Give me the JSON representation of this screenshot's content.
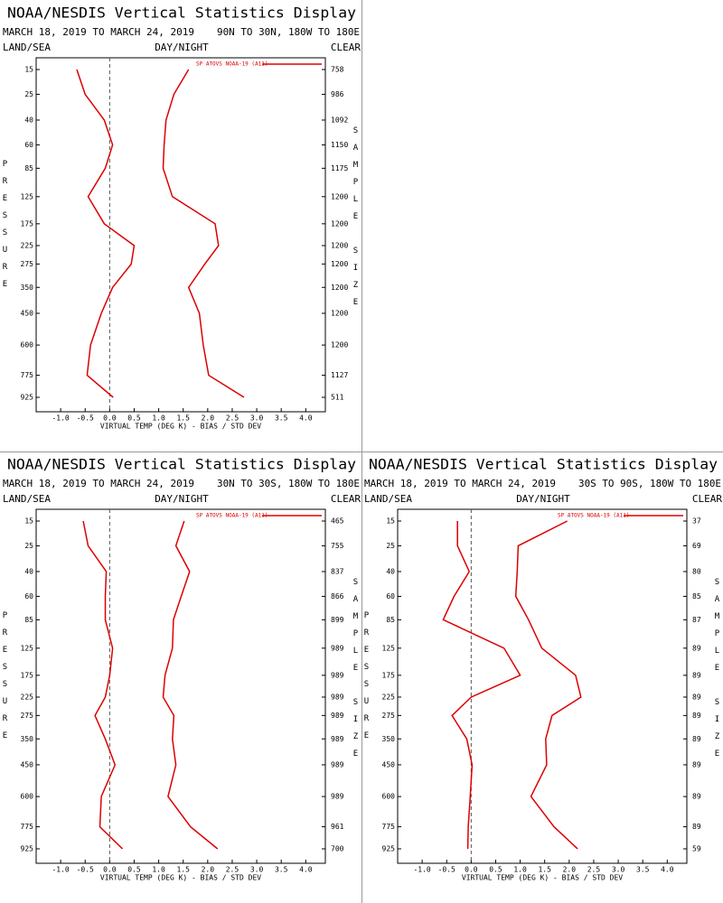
{
  "chart_data": [
    {
      "type": "line",
      "title": "NOAA/NESDIS Vertical Statistics Display",
      "date_range": "MARCH 18, 2019 TO MARCH 24, 2019",
      "region": "90N TO 30N, 180W TO 180E",
      "land_sea": "LAND/SEA",
      "day_night": "DAY/NIGHT",
      "clear": "CLEAR",
      "legend": "SP ATOVS NOAA-19 (A11)",
      "color": "#dd0000",
      "ylabel": "PRESSURE",
      "y2label": "SAMPLE SIZE",
      "xlabel": "VIRTUAL TEMP (DEG K) - BIAS / STD DEV",
      "xlim": [
        -1.5,
        4.4
      ],
      "xticks": [
        {
          "value": -1,
          "label": "-1.0"
        },
        -0.5,
        {
          "value": 0,
          "label": "0.0"
        },
        0.5,
        {
          "value": 1,
          "label": "1.0"
        },
        1.5,
        {
          "value": 2,
          "label": "2.0"
        },
        2.5,
        {
          "value": 3,
          "label": "3.0"
        },
        3.5,
        {
          "value": 4,
          "label": "4.0"
        }
      ],
      "levels": [
        15,
        25,
        40,
        60,
        85,
        125,
        175,
        225,
        275,
        350,
        450,
        600,
        775,
        925
      ],
      "bias": [
        -0.67,
        -0.5,
        -0.11,
        0.06,
        -0.09,
        -0.44,
        -0.11,
        0.5,
        0.44,
        0.06,
        -0.17,
        -0.39,
        -0.46,
        0.07
      ],
      "std_dev": [
        1.61,
        1.31,
        1.15,
        1.11,
        1.09,
        1.28,
        2.15,
        2.22,
        1.94,
        1.61,
        1.83,
        1.91,
        2.02,
        2.74
      ],
      "sample_size": [
        758,
        986,
        1092,
        1150,
        1175,
        1200,
        1200,
        1200,
        1200,
        1200,
        1200,
        1200,
        1127,
        511
      ]
    },
    {
      "type": "line",
      "title": "NOAA/NESDIS Vertical Statistics Display",
      "date_range": "MARCH 18, 2019 TO MARCH 24, 2019",
      "region": "30N TO 30S, 180W TO 180E",
      "land_sea": "LAND/SEA",
      "day_night": "DAY/NIGHT",
      "clear": "CLEAR",
      "legend": "SP ATOVS NOAA-19 (A11)",
      "color": "#dd0000",
      "ylabel": "PRESSURE",
      "y2label": "SAMPLE SIZE",
      "xlabel": "VIRTUAL TEMP (DEG K) - BIAS / STD DEV",
      "xlim": [
        -1.5,
        4.4
      ],
      "xticks": [
        {
          "value": -1,
          "label": "-1.0"
        },
        -0.5,
        {
          "value": 0,
          "label": "0.0"
        },
        0.5,
        {
          "value": 1,
          "label": "1.0"
        },
        1.5,
        {
          "value": 2,
          "label": "2.0"
        },
        2.5,
        {
          "value": 3,
          "label": "3.0"
        },
        3.5,
        {
          "value": 4,
          "label": "4.0"
        }
      ],
      "levels": [
        15,
        25,
        40,
        60,
        85,
        125,
        175,
        225,
        275,
        350,
        450,
        600,
        775,
        925
      ],
      "bias": [
        -0.54,
        -0.44,
        -0.07,
        -0.09,
        -0.09,
        0.06,
        0,
        -0.09,
        -0.3,
        -0.09,
        0.11,
        -0.17,
        -0.2,
        0.26
      ],
      "std_dev": [
        1.52,
        1.35,
        1.63,
        1.46,
        1.3,
        1.28,
        1.13,
        1.09,
        1.31,
        1.28,
        1.35,
        1.19,
        1.65,
        2.2
      ],
      "sample_size": [
        465,
        755,
        837,
        866,
        899,
        989,
        989,
        989,
        989,
        989,
        989,
        989,
        961,
        700
      ]
    },
    {
      "type": "line",
      "title": "NOAA/NESDIS Vertical Statistics Display",
      "date_range": "MARCH 18, 2019 TO MARCH 24, 2019",
      "region": "30S TO 90S, 180W TO 180E",
      "land_sea": "LAND/SEA",
      "day_night": "DAY/NIGHT",
      "clear": "CLEAR",
      "legend": "SP ATOVS NOAA-19 (A11)",
      "color": "#dd0000",
      "ylabel": "PRESSURE",
      "y2label": "SAMPLE SIZE",
      "xlabel": "VIRTUAL TEMP (DEG K) - BIAS / STD DEV",
      "xlim": [
        -1.5,
        4.4
      ],
      "xticks": [
        {
          "value": -1,
          "label": "-1.0"
        },
        -0.5,
        {
          "value": 0,
          "label": "0.0"
        },
        0.5,
        {
          "value": 1,
          "label": "1.0"
        },
        1.5,
        {
          "value": 2,
          "label": "2.0"
        },
        2.5,
        {
          "value": 3,
          "label": "3.0"
        },
        3.5,
        {
          "value": 4,
          "label": "4.0"
        }
      ],
      "levels": [
        15,
        25,
        40,
        60,
        85,
        125,
        175,
        225,
        275,
        350,
        450,
        600,
        775,
        925
      ],
      "bias": [
        -0.28,
        -0.28,
        -0.04,
        -0.35,
        -0.57,
        0.67,
        1.0,
        0,
        -0.39,
        -0.09,
        0.02,
        -0.02,
        -0.06,
        -0.07
      ],
      "std_dev": [
        1.96,
        0.96,
        0.94,
        0.91,
        1.17,
        1.44,
        2.13,
        2.24,
        1.65,
        1.52,
        1.54,
        1.22,
        1.69,
        2.17
      ],
      "sample_size": [
        37,
        69,
        80,
        85,
        87,
        89,
        89,
        89,
        89,
        89,
        89,
        89,
        89,
        59
      ]
    }
  ]
}
